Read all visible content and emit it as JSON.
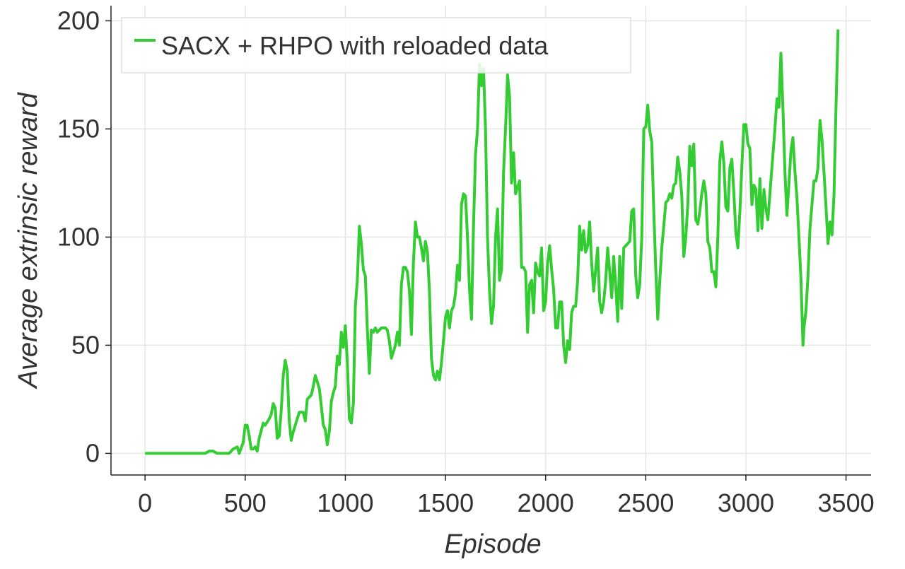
{
  "chart_data": {
    "type": "line",
    "xlabel": "Episode",
    "ylabel": "Average extrinsic reward",
    "xlim": [
      -170,
      3625
    ],
    "ylim": [
      -10,
      207
    ],
    "xticks": [
      0,
      500,
      1000,
      1500,
      2000,
      2500,
      3000,
      3500
    ],
    "yticks": [
      0,
      50,
      100,
      150,
      200
    ],
    "grid": true,
    "legend": "upper left",
    "x": [
      0,
      100,
      200,
      300,
      320,
      340,
      360,
      380,
      400,
      420,
      440,
      460,
      470,
      490,
      500,
      510,
      520,
      530,
      540,
      550,
      560,
      570,
      590,
      600,
      620,
      630,
      640,
      650,
      660,
      670,
      680,
      690,
      700,
      710,
      720,
      730,
      740,
      760,
      770,
      790,
      800,
      810,
      820,
      830,
      840,
      850,
      860,
      870,
      880,
      890,
      900,
      910,
      920,
      930,
      940,
      950,
      960,
      970,
      980,
      990,
      1000,
      1010,
      1020,
      1030,
      1040,
      1050,
      1060,
      1070,
      1080,
      1090,
      1100,
      1110,
      1120,
      1130,
      1140,
      1150,
      1160,
      1170,
      1180,
      1200,
      1210,
      1220,
      1230,
      1250,
      1260,
      1270,
      1280,
      1290,
      1300,
      1310,
      1320,
      1330,
      1340,
      1350,
      1360,
      1370,
      1380,
      1390,
      1400,
      1410,
      1420,
      1430,
      1440,
      1450,
      1460,
      1470,
      1480,
      1490,
      1500,
      1510,
      1520,
      1530,
      1540,
      1550,
      1560,
      1570,
      1580,
      1590,
      1600,
      1610,
      1620,
      1630,
      1640,
      1650,
      1660,
      1670,
      1680,
      1690,
      1700,
      1710,
      1720,
      1730,
      1740,
      1750,
      1760,
      1770,
      1780,
      1790,
      1800,
      1810,
      1820,
      1830,
      1840,
      1850,
      1860,
      1870,
      1880,
      1890,
      1900,
      1910,
      1920,
      1930,
      1940,
      1950,
      1960,
      1970,
      1980,
      1990,
      2000,
      2010,
      2020,
      2030,
      2040,
      2050,
      2060,
      2070,
      2080,
      2090,
      2100,
      2110,
      2120,
      2130,
      2140,
      2150,
      2160,
      2170,
      2180,
      2190,
      2200,
      2210,
      2220,
      2230,
      2240,
      2250,
      2260,
      2270,
      2280,
      2290,
      2300,
      2310,
      2320,
      2330,
      2340,
      2350,
      2360,
      2370,
      2380,
      2390,
      2420,
      2430,
      2440,
      2450,
      2460,
      2470,
      2480,
      2490,
      2500,
      2510,
      2520,
      2530,
      2540,
      2550,
      2560,
      2570,
      2580,
      2590,
      2600,
      2610,
      2620,
      2630,
      2640,
      2650,
      2660,
      2670,
      2680,
      2690,
      2700,
      2710,
      2720,
      2730,
      2740,
      2750,
      2760,
      2770,
      2780,
      2790,
      2800,
      2810,
      2820,
      2830,
      2840,
      2850,
      2860,
      2870,
      2880,
      2890,
      2900,
      2910,
      2920,
      2930,
      2940,
      2950,
      2960,
      2970,
      2980,
      2990,
      3000,
      3010,
      3020,
      3030,
      3040,
      3050,
      3060,
      3070,
      3080,
      3090,
      3100,
      3110,
      3145,
      3155,
      3165,
      3175,
      3185,
      3195,
      3205,
      3215,
      3225,
      3235,
      3245,
      3255,
      3265,
      3275,
      3285,
      3290,
      3300,
      3310,
      3320,
      3330,
      3340,
      3350,
      3360,
      3370,
      3380,
      3390,
      3400,
      3410,
      3420,
      3430,
      3440,
      3450,
      3460
    ],
    "series": [
      {
        "name": "SACX + RHPO with reloaded data",
        "color": "#33cc33",
        "values": [
          0,
          0,
          0,
          0,
          1,
          1,
          0,
          0,
          0,
          0,
          2,
          3,
          0,
          5,
          13,
          13,
          8,
          2,
          2,
          3,
          1,
          7,
          14,
          13,
          16,
          18,
          23,
          21,
          7,
          8,
          20,
          36,
          43,
          38,
          15,
          6,
          10,
          16,
          19,
          19,
          15,
          25,
          26,
          27,
          31,
          36,
          33,
          30,
          22,
          13,
          11,
          4,
          10,
          24,
          28,
          31,
          45,
          41,
          56,
          49,
          59,
          42,
          16,
          14,
          23,
          68,
          80,
          105,
          97,
          85,
          82,
          57,
          37,
          57,
          56,
          58,
          56,
          57,
          58,
          58,
          57,
          52,
          44,
          50,
          56,
          50,
          78,
          86,
          86,
          84,
          75,
          55,
          88,
          107,
          100,
          100,
          95,
          89,
          98,
          93,
          75,
          44,
          36,
          34,
          38,
          34,
          42,
          52,
          63,
          66,
          58,
          66,
          68,
          74,
          87,
          80,
          115,
          120,
          119,
          100,
          76,
          62,
          105,
          138,
          150,
          180,
          170,
          178,
          150,
          100,
          75,
          60,
          68,
          100,
          113,
          80,
          85,
          130,
          150,
          175,
          165,
          125,
          139,
          120,
          123,
          126,
          86,
          86,
          84,
          56,
          78,
          80,
          65,
          88,
          84,
          82,
          95,
          66,
          70,
          88,
          96,
          85,
          76,
          58,
          58,
          70,
          70,
          50,
          42,
          52,
          48,
          65,
          68,
          68,
          80,
          105,
          94,
          103,
          93,
          96,
          107,
          88,
          75,
          85,
          95,
          70,
          65,
          70,
          80,
          95,
          84,
          72,
          91,
          78,
          61,
          91,
          67,
          95,
          98,
          112,
          113,
          82,
          72,
          78,
          100,
          150,
          151,
          161,
          149,
          144,
          112,
          85,
          62,
          80,
          95,
          105,
          116,
          117,
          120,
          118,
          124,
          125,
          137,
          130,
          119,
          91,
          100,
          115,
          142,
          133,
          143,
          108,
          106,
          112,
          120,
          126,
          120,
          98,
          95,
          84,
          84,
          77,
          100,
          135,
          144,
          134,
          114,
          112,
          132,
          136,
          120,
          102,
          95,
          112,
          133,
          152,
          152,
          143,
          141,
          115,
          124,
          122,
          103,
          127,
          104,
          122,
          113,
          108,
          150,
          164,
          160,
          185,
          159,
          130,
          110,
          125,
          140,
          146,
          130,
          118,
          100,
          80,
          50,
          58,
          66,
          82,
          104,
          115,
          126,
          126,
          132,
          154,
          145,
          130,
          114,
          97,
          107,
          101,
          120,
          160,
          196
        ]
      }
    ]
  }
}
